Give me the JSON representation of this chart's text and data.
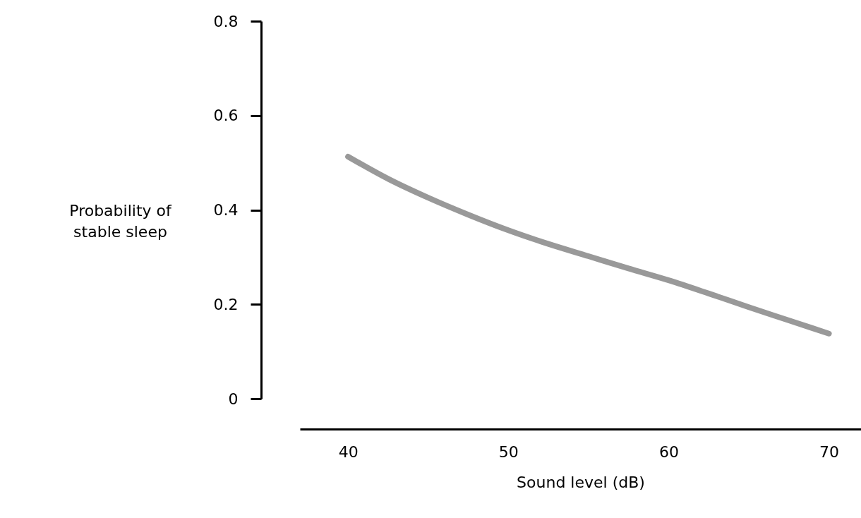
{
  "chart_data": {
    "type": "line",
    "xlabel": "Sound level (dB)",
    "ylabel": "Probability of stable sleep",
    "x": [
      40,
      42.5,
      45,
      47.5,
      50,
      52.5,
      55,
      57.5,
      60,
      62.5,
      65,
      67.5,
      70
    ],
    "series": [
      {
        "color": "#999999",
        "values": [
          0.513,
          0.466,
          0.426,
          0.39,
          0.357,
          0.328,
          0.302,
          0.276,
          0.251,
          0.223,
          0.194,
          0.166,
          0.138
        ]
      }
    ],
    "xlim": [
      37,
      72
    ],
    "ylim": [
      0,
      0.8
    ],
    "xticks": [
      40,
      50,
      60,
      70
    ],
    "yticks": [
      {
        "value": 0,
        "label": "0"
      },
      0.2,
      0.4,
      0.6,
      0.8
    ],
    "grid": false,
    "marker": "none",
    "line_style": "solid"
  }
}
